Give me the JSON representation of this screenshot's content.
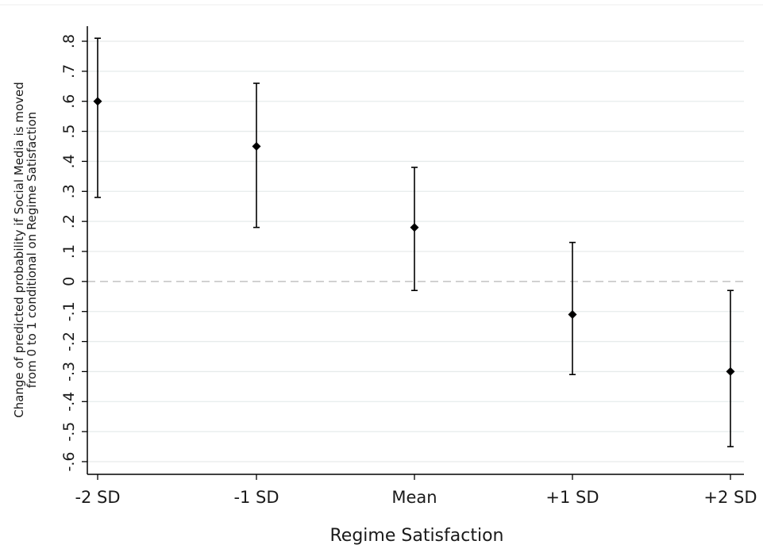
{
  "chart_data": {
    "type": "scatter",
    "xlabel": "Regime Satisfaction",
    "ylabel_lines": [
      "Change of predicted probability if Social Media is moved",
      "from 0 to 1 conditional on Regime Satisfaction"
    ],
    "categories": [
      "-2 SD",
      "-1 SD",
      "Mean",
      "+1 SD",
      "+2 SD"
    ],
    "estimates": [
      0.6,
      0.45,
      0.18,
      -0.11,
      -0.3
    ],
    "ci_lower": [
      0.28,
      0.18,
      -0.03,
      -0.31,
      -0.55
    ],
    "ci_upper": [
      0.81,
      0.66,
      0.38,
      0.13,
      -0.03
    ],
    "y_ticks": [
      0.8,
      0.7,
      0.6,
      0.5,
      0.4,
      0.3,
      0.2,
      0.1,
      0,
      -0.1,
      -0.2,
      -0.3,
      -0.4,
      -0.5,
      -0.6
    ],
    "y_tick_labels": [
      ".8",
      ".7",
      ".6",
      ".5",
      ".4",
      ".3",
      ".2",
      ".1",
      "0",
      "-.1",
      "-.2",
      "-.3",
      "-.4",
      "-.5",
      "-.6"
    ],
    "ylim": [
      -0.6,
      0.8
    ],
    "reference_line_y": 0,
    "grid": true,
    "colors": {
      "marker": "#000000",
      "grid": "#e6ebeb",
      "reference_line": "#c8c8c8",
      "axis": "#000000"
    }
  }
}
